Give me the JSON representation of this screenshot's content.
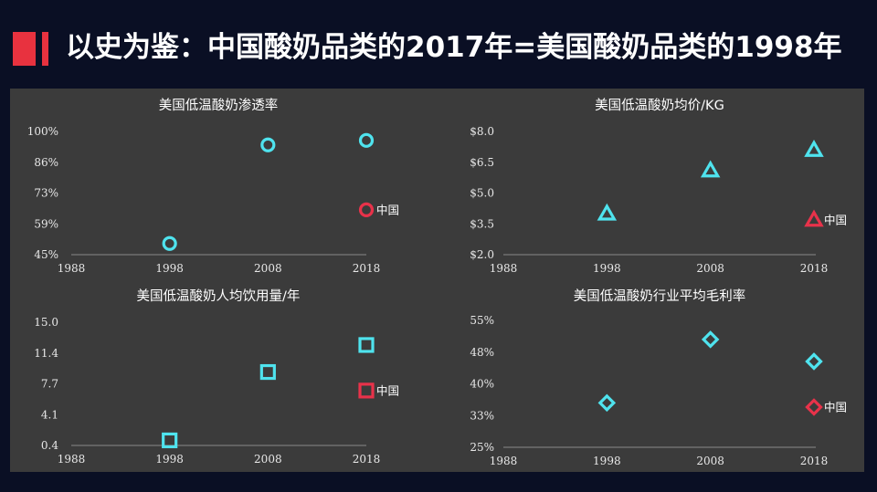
{
  "header": {
    "title": "以史为鉴：中国酸奶品类的2017年=美国酸奶品类的1998年"
  },
  "colors": {
    "us": "#4fe3ee",
    "china": "#e8324a",
    "brand": "#e8323f"
  },
  "chart_data": [
    {
      "type": "scatter",
      "title": "美国低温酸奶渗透率",
      "marker": "circle",
      "xticks": [
        "1988",
        "1998",
        "2008",
        "2018"
      ],
      "xlim": [
        1988,
        2018
      ],
      "yticks": [
        "100%",
        "86%",
        "73%",
        "59%",
        "45%"
      ],
      "ylim": [
        45,
        100
      ],
      "series": [
        {
          "points": [
            [
              1998,
              50
            ],
            [
              2008,
              94
            ],
            [
              2018,
              96
            ]
          ]
        },
        {
          "name": "中国",
          "points": [
            [
              2018,
              65
            ]
          ]
        }
      ]
    },
    {
      "type": "scatter",
      "title": "美国低温酸奶均价/KG",
      "marker": "triangle",
      "xticks": [
        "1988",
        "1998",
        "2008",
        "2018"
      ],
      "xlim": [
        1988,
        2018
      ],
      "yticks": [
        "$8.0",
        "$6.5",
        "$5.0",
        "$3.5",
        "$2.0"
      ],
      "ylim": [
        2,
        8
      ],
      "series": [
        {
          "points": [
            [
              1998,
              4.0
            ],
            [
              2008,
              6.1
            ],
            [
              2018,
              7.1
            ]
          ]
        },
        {
          "name": "中国",
          "points": [
            [
              2018,
              3.7
            ]
          ]
        }
      ]
    },
    {
      "type": "scatter",
      "title": "美国低温酸奶人均饮用量/年",
      "marker": "square",
      "xticks": [
        "1988",
        "1998",
        "2008",
        "2018"
      ],
      "xlim": [
        1988,
        2018
      ],
      "yticks": [
        "15.0",
        "11.4",
        "7.7",
        "4.1",
        "0.4"
      ],
      "ylim": [
        0.4,
        15
      ],
      "series": [
        {
          "points": [
            [
              1998,
              1.0
            ],
            [
              2008,
              9.1
            ],
            [
              2018,
              12.3
            ]
          ]
        },
        {
          "name": "中国",
          "points": [
            [
              2018,
              6.9
            ]
          ]
        }
      ]
    },
    {
      "type": "scatter",
      "title": "美国低温酸奶行业平均毛利率",
      "marker": "diamond",
      "xticks": [
        "1988",
        "1998",
        "2008",
        "2018"
      ],
      "xlim": [
        1988,
        2018
      ],
      "yticks": [
        "55%",
        "48%",
        "40%",
        "33%",
        "25%"
      ],
      "ylim": [
        25,
        55
      ],
      "series": [
        {
          "points": [
            [
              1998,
              35.5
            ],
            [
              2008,
              50.5
            ],
            [
              2018,
              45.3
            ]
          ]
        },
        {
          "name": "中国",
          "points": [
            [
              2018,
              34.5
            ]
          ]
        }
      ]
    }
  ]
}
